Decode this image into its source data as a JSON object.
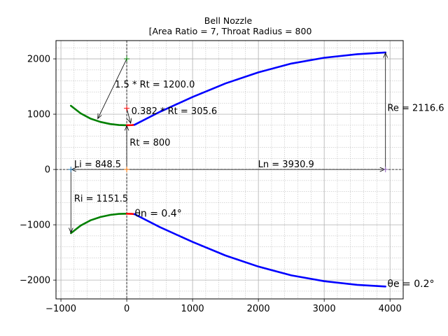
{
  "chart_data": {
    "type": "line",
    "title": "Bell Nozzle",
    "subtitle": "[Area Ratio = 7, Throat Radius = 800",
    "xlabel": "",
    "ylabel": "",
    "xlim": [
      -1075,
      4200
    ],
    "ylim": [
      -2340,
      2330
    ],
    "xticks": [
      -1000,
      0,
      1000,
      2000,
      3000,
      4000
    ],
    "xtick_labels": [
      "−1000",
      "0",
      "1000",
      "2000",
      "3000",
      "4000"
    ],
    "yticks": [
      -2000,
      -1000,
      0,
      1000,
      2000
    ],
    "ytick_labels": [
      "−2000",
      "−1000",
      "0",
      "1000",
      "2000"
    ],
    "grid": true,
    "grid_minor": true,
    "colors": {
      "entrant": "#008000",
      "throat_exit": "#ff0000",
      "bell": "#0000ff",
      "annotation": "#000000",
      "grid": "#b0b0b0"
    },
    "series": [
      {
        "key": "entrant_upper",
        "color": "#008000",
        "x": [
          -848.5,
          -700,
          -550,
          -400,
          -250,
          -120,
          0
        ],
        "y": [
          1151.5,
          1014,
          919,
          859,
          821,
          804,
          800
        ]
      },
      {
        "key": "throat_exit_upper",
        "color": "#ff0000",
        "x": [
          0,
          40,
          80,
          117
        ],
        "y": [
          800,
          801,
          803,
          808
        ]
      },
      {
        "key": "bell_upper",
        "color": "#0000ff",
        "x": [
          117,
          500,
          1000,
          1500,
          2000,
          2500,
          3000,
          3500,
          3930.9
        ],
        "y": [
          808,
          1040,
          1310,
          1555,
          1755,
          1915,
          2020,
          2085,
          2116.6
        ]
      },
      {
        "key": "entrant_lower",
        "color": "#008000",
        "x": [
          -848.5,
          -700,
          -550,
          -400,
          -250,
          -120,
          0
        ],
        "y": [
          -1151.5,
          -1014,
          -919,
          -859,
          -821,
          -804,
          -800
        ]
      },
      {
        "key": "throat_exit_lower",
        "color": "#ff0000",
        "x": [
          0,
          40,
          80,
          117
        ],
        "y": [
          -800,
          -801,
          -803,
          -808
        ]
      },
      {
        "key": "bell_lower",
        "color": "#0000ff",
        "x": [
          117,
          500,
          1000,
          1500,
          2000,
          2500,
          3000,
          3500,
          3930.9
        ],
        "y": [
          -808,
          -1040,
          -1310,
          -1555,
          -1755,
          -1915,
          -2020,
          -2085,
          -2116.6
        ]
      }
    ],
    "markers": [
      {
        "key": "center_15",
        "x": 0,
        "y": 2000,
        "color": "#008000",
        "symbol": "+"
      },
      {
        "key": "center_0382",
        "x": 0,
        "y": 1105.6,
        "color": "#ff0000",
        "symbol": "+"
      },
      {
        "key": "origin",
        "x": 0,
        "y": 0,
        "color": "#ff7f0e",
        "symbol": "+"
      },
      {
        "key": "inlet",
        "x": -848.5,
        "y": 0,
        "color": "#1f77b4",
        "symbol": "+"
      },
      {
        "key": "exit",
        "x": 3930.9,
        "y": 0,
        "color": "#9467bd",
        "symbol": "+"
      }
    ],
    "annotations": [
      {
        "key": "r15",
        "text": "1.5 * Rt = 1200.0",
        "x": -180,
        "y": 1480,
        "fontsize": 13
      },
      {
        "key": "r0382",
        "text": "0.382 * Rt = 305.6",
        "x": 70,
        "y": 1000,
        "fontsize": 13
      },
      {
        "key": "rt",
        "text": "Rt = 800",
        "x": 45,
        "y": 430,
        "fontsize": 13
      },
      {
        "key": "li",
        "text": "Li = 848.5",
        "x": -800,
        "y": 40,
        "fontsize": 13
      },
      {
        "key": "ln",
        "text": "Ln = 3930.9",
        "x": 1995,
        "y": 40,
        "fontsize": 13
      },
      {
        "key": "re",
        "text": "Re = 2116.6",
        "x": 3960,
        "y": 1060,
        "fontsize": 13
      },
      {
        "key": "ri",
        "text": "Ri = 1151.5",
        "x": -800,
        "y": -580,
        "fontsize": 13
      },
      {
        "key": "thn",
        "text": "θn = 0.4°",
        "x": 120,
        "y": -850,
        "fontsize": 14
      },
      {
        "key": "the",
        "text": "θe = 0.2°",
        "x": 3960,
        "y": -2125,
        "fontsize": 14
      }
    ],
    "arrows": [
      {
        "key": "a15",
        "x1": 0,
        "y1": 2000,
        "x2": -440,
        "y2": 920
      },
      {
        "key": "a0382",
        "x1": 0,
        "y1": 1105.6,
        "x2": 60,
        "y2": 835
      },
      {
        "key": "art",
        "x1": 0,
        "y1": 0,
        "x2": 0,
        "y2": 790
      },
      {
        "key": "ali",
        "x1": 0,
        "y1": 0,
        "x2": -840,
        "y2": 0
      },
      {
        "key": "aln",
        "x1": 0,
        "y1": 0,
        "x2": 3920,
        "y2": 0
      },
      {
        "key": "are",
        "x1": 3930.9,
        "y1": 0,
        "x2": 3930.9,
        "y2": 2108
      },
      {
        "key": "ari",
        "x1": -848.5,
        "y1": 0,
        "x2": -848.5,
        "y2": -1142
      }
    ]
  }
}
